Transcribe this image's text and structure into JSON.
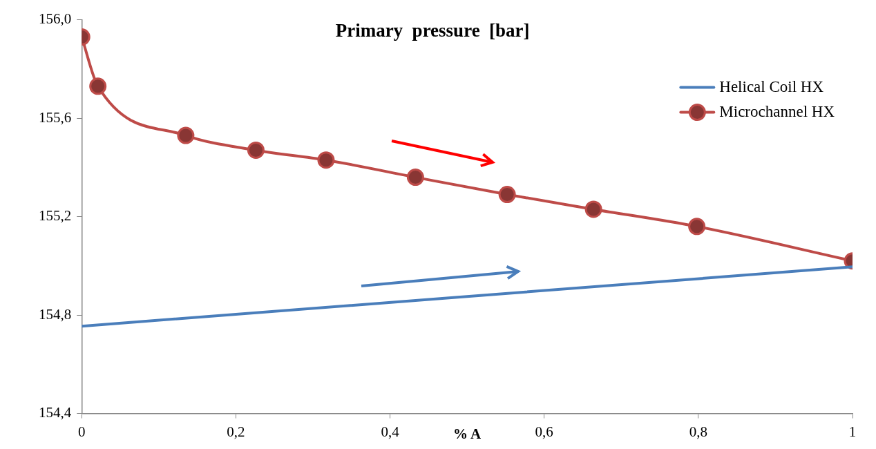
{
  "chart_data": {
    "type": "line",
    "title": "Primary  pressure  [bar]",
    "xlabel": "% A",
    "series": [
      {
        "name": "Helical Coil HX",
        "color": "#4a7ebb",
        "x": [
          0,
          1
        ],
        "values": [
          154.755,
          154.996
        ],
        "marker": "none"
      },
      {
        "name": "Microchannel HX",
        "color": "#be4b48",
        "x": [
          0,
          0.021,
          0.135,
          0.226,
          0.317,
          0.433,
          0.552,
          0.664,
          0.798,
          1
        ],
        "values": [
          155.93,
          155.73,
          155.53,
          155.47,
          155.43,
          155.36,
          155.29,
          155.23,
          155.16,
          155.02
        ],
        "marker": "circle"
      }
    ],
    "xlim": [
      0,
      1
    ],
    "xticks": [
      0,
      {
        "value": 0.2,
        "label": "0,2"
      },
      {
        "value": 0.4,
        "label": "0,4"
      },
      {
        "value": 0.6,
        "label": "0,6"
      },
      {
        "value": 0.8,
        "label": "0,8"
      },
      1
    ],
    "ylim": [
      154.4,
      156
    ],
    "yticks": [
      {
        "value": 154.4,
        "label": "154,4"
      },
      {
        "value": 154.8,
        "label": "154,8"
      },
      {
        "value": 155.2,
        "label": "155,2"
      },
      {
        "value": 155.6,
        "label": "155,6"
      },
      {
        "value": 156,
        "label": "156,0"
      }
    ],
    "grid": false,
    "legend": "top right"
  }
}
